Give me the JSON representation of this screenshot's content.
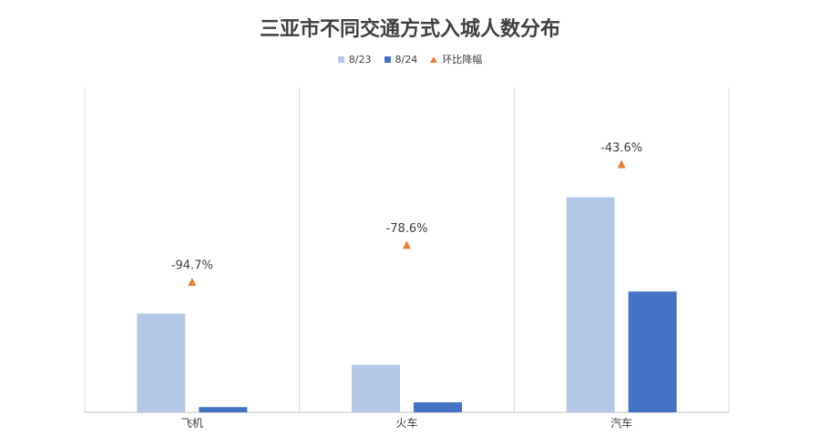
{
  "chart_data": {
    "type": "bar",
    "title": "三亚市不同交通方式入城人数分布",
    "categories": [
      "飞机",
      "火车",
      "汽车"
    ],
    "series": [
      {
        "name": "8/23",
        "color": "#B4C7E7",
        "values": [
          108,
          52,
          235
        ]
      },
      {
        "name": "8/24",
        "color": "#4472C4",
        "values": [
          5.7,
          11,
          132
        ]
      }
    ],
    "marker_series": {
      "name": "环比降幅",
      "color": "#ED7D31",
      "marker": "triangle",
      "values": [
        -94.7,
        -78.6,
        -43.6
      ],
      "labels": [
        "-94.7%",
        "-78.6%",
        "-43.6%"
      ]
    },
    "ylim": [
      0,
      355
    ],
    "legend_position": "top",
    "grid": "vertical-separators"
  }
}
